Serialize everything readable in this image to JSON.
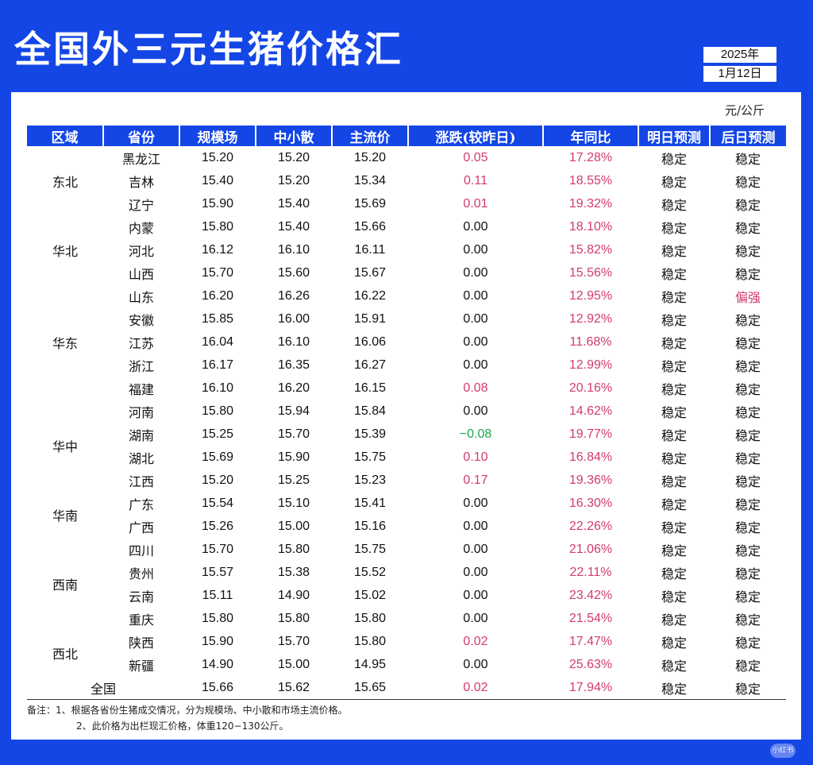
{
  "title": "全国外三元生猪价格汇",
  "date": {
    "year": "2025年",
    "day": "1月12日"
  },
  "unit": "元/公斤",
  "columns": [
    "区域",
    "省份",
    "规模场",
    "中小散",
    "主流价",
    "涨跌(较昨日)",
    "年同比",
    "明日预测",
    "后日预测"
  ],
  "regions": [
    {
      "name": "东北",
      "rows": [
        {
          "prov": "黑龙江",
          "large": "15.20",
          "small": "15.20",
          "main": "15.20",
          "change": "0.05",
          "change_color": "red",
          "yoy": "17.28%",
          "tomorrow": "稳定",
          "dayafter": "稳定"
        },
        {
          "prov": "吉林",
          "large": "15.40",
          "small": "15.20",
          "main": "15.34",
          "change": "0.11",
          "change_color": "red",
          "yoy": "18.55%",
          "tomorrow": "稳定",
          "dayafter": "稳定"
        },
        {
          "prov": "辽宁",
          "large": "15.90",
          "small": "15.40",
          "main": "15.69",
          "change": "0.01",
          "change_color": "red",
          "yoy": "19.32%",
          "tomorrow": "稳定",
          "dayafter": "稳定"
        }
      ]
    },
    {
      "name": "华北",
      "rows": [
        {
          "prov": "内蒙",
          "large": "15.80",
          "small": "15.40",
          "main": "15.66",
          "change": "0.00",
          "change_color": "black",
          "yoy": "18.10%",
          "tomorrow": "稳定",
          "dayafter": "稳定"
        },
        {
          "prov": "河北",
          "large": "16.12",
          "small": "16.10",
          "main": "16.11",
          "change": "0.00",
          "change_color": "black",
          "yoy": "15.82%",
          "tomorrow": "稳定",
          "dayafter": "稳定"
        },
        {
          "prov": "山西",
          "large": "15.70",
          "small": "15.60",
          "main": "15.67",
          "change": "0.00",
          "change_color": "black",
          "yoy": "15.56%",
          "tomorrow": "稳定",
          "dayafter": "稳定"
        }
      ]
    },
    {
      "name": "华东",
      "rows": [
        {
          "prov": "山东",
          "large": "16.20",
          "small": "16.26",
          "main": "16.22",
          "change": "0.00",
          "change_color": "black",
          "yoy": "12.95%",
          "tomorrow": "稳定",
          "dayafter": "偏强",
          "dayafter_color": "red"
        },
        {
          "prov": "安徽",
          "large": "15.85",
          "small": "16.00",
          "main": "15.91",
          "change": "0.00",
          "change_color": "black",
          "yoy": "12.92%",
          "tomorrow": "稳定",
          "dayafter": "稳定"
        },
        {
          "prov": "江苏",
          "large": "16.04",
          "small": "16.10",
          "main": "16.06",
          "change": "0.00",
          "change_color": "black",
          "yoy": "11.68%",
          "tomorrow": "稳定",
          "dayafter": "稳定"
        },
        {
          "prov": "浙江",
          "large": "16.17",
          "small": "16.35",
          "main": "16.27",
          "change": "0.00",
          "change_color": "black",
          "yoy": "12.99%",
          "tomorrow": "稳定",
          "dayafter": "稳定"
        },
        {
          "prov": "福建",
          "large": "16.10",
          "small": "16.20",
          "main": "16.15",
          "change": "0.08",
          "change_color": "red",
          "yoy": "20.16%",
          "tomorrow": "稳定",
          "dayafter": "稳定"
        }
      ]
    },
    {
      "name": "华中",
      "rows": [
        {
          "prov": "河南",
          "large": "15.80",
          "small": "15.94",
          "main": "15.84",
          "change": "0.00",
          "change_color": "black",
          "yoy": "14.62%",
          "tomorrow": "稳定",
          "dayafter": "稳定"
        },
        {
          "prov": "湖南",
          "large": "15.25",
          "small": "15.70",
          "main": "15.39",
          "change": "−0.08",
          "change_color": "green",
          "yoy": "19.77%",
          "tomorrow": "稳定",
          "dayafter": "稳定"
        },
        {
          "prov": "湖北",
          "large": "15.69",
          "small": "15.90",
          "main": "15.75",
          "change": "0.10",
          "change_color": "red",
          "yoy": "16.84%",
          "tomorrow": "稳定",
          "dayafter": "稳定"
        },
        {
          "prov": "江西",
          "large": "15.20",
          "small": "15.25",
          "main": "15.23",
          "change": "0.17",
          "change_color": "red",
          "yoy": "19.36%",
          "tomorrow": "稳定",
          "dayafter": "稳定"
        }
      ]
    },
    {
      "name": "华南",
      "rows": [
        {
          "prov": "广东",
          "large": "15.54",
          "small": "15.10",
          "main": "15.41",
          "change": "0.00",
          "change_color": "black",
          "yoy": "16.30%",
          "tomorrow": "稳定",
          "dayafter": "稳定"
        },
        {
          "prov": "广西",
          "large": "15.26",
          "small": "15.00",
          "main": "15.16",
          "change": "0.00",
          "change_color": "black",
          "yoy": "22.26%",
          "tomorrow": "稳定",
          "dayafter": "稳定"
        }
      ]
    },
    {
      "name": "西南",
      "rows": [
        {
          "prov": "四川",
          "large": "15.70",
          "small": "15.80",
          "main": "15.75",
          "change": "0.00",
          "change_color": "black",
          "yoy": "21.06%",
          "tomorrow": "稳定",
          "dayafter": "稳定"
        },
        {
          "prov": "贵州",
          "large": "15.57",
          "small": "15.38",
          "main": "15.52",
          "change": "0.00",
          "change_color": "black",
          "yoy": "22.11%",
          "tomorrow": "稳定",
          "dayafter": "稳定"
        },
        {
          "prov": "云南",
          "large": "15.11",
          "small": "14.90",
          "main": "15.02",
          "change": "0.00",
          "change_color": "black",
          "yoy": "23.42%",
          "tomorrow": "稳定",
          "dayafter": "稳定"
        },
        {
          "prov": "重庆",
          "large": "15.80",
          "small": "15.80",
          "main": "15.80",
          "change": "0.00",
          "change_color": "black",
          "yoy": "21.54%",
          "tomorrow": "稳定",
          "dayafter": "稳定"
        }
      ]
    },
    {
      "name": "西北",
      "rows": [
        {
          "prov": "陕西",
          "large": "15.90",
          "small": "15.70",
          "main": "15.80",
          "change": "0.02",
          "change_color": "red",
          "yoy": "17.47%",
          "tomorrow": "稳定",
          "dayafter": "稳定"
        },
        {
          "prov": "新疆",
          "large": "14.90",
          "small": "15.00",
          "main": "14.95",
          "change": "0.00",
          "change_color": "black",
          "yoy": "25.63%",
          "tomorrow": "稳定",
          "dayafter": "稳定"
        }
      ]
    }
  ],
  "total": {
    "label": "全国",
    "large": "15.66",
    "small": "15.62",
    "main": "15.65",
    "change": "0.02",
    "change_color": "red",
    "yoy": "17.94%",
    "tomorrow": "稳定",
    "dayafter": "稳定"
  },
  "notes": [
    "备注：1、根据各省份生猪成交情况，分为规模场、中小散和市场主流价格。",
    "2、此价格为出栏现汇价格，体重120−130公斤。"
  ],
  "watermark": "小红书",
  "colors": {
    "brand": "#1446e6",
    "up": "#d23c6a",
    "down": "#1aa64a"
  }
}
